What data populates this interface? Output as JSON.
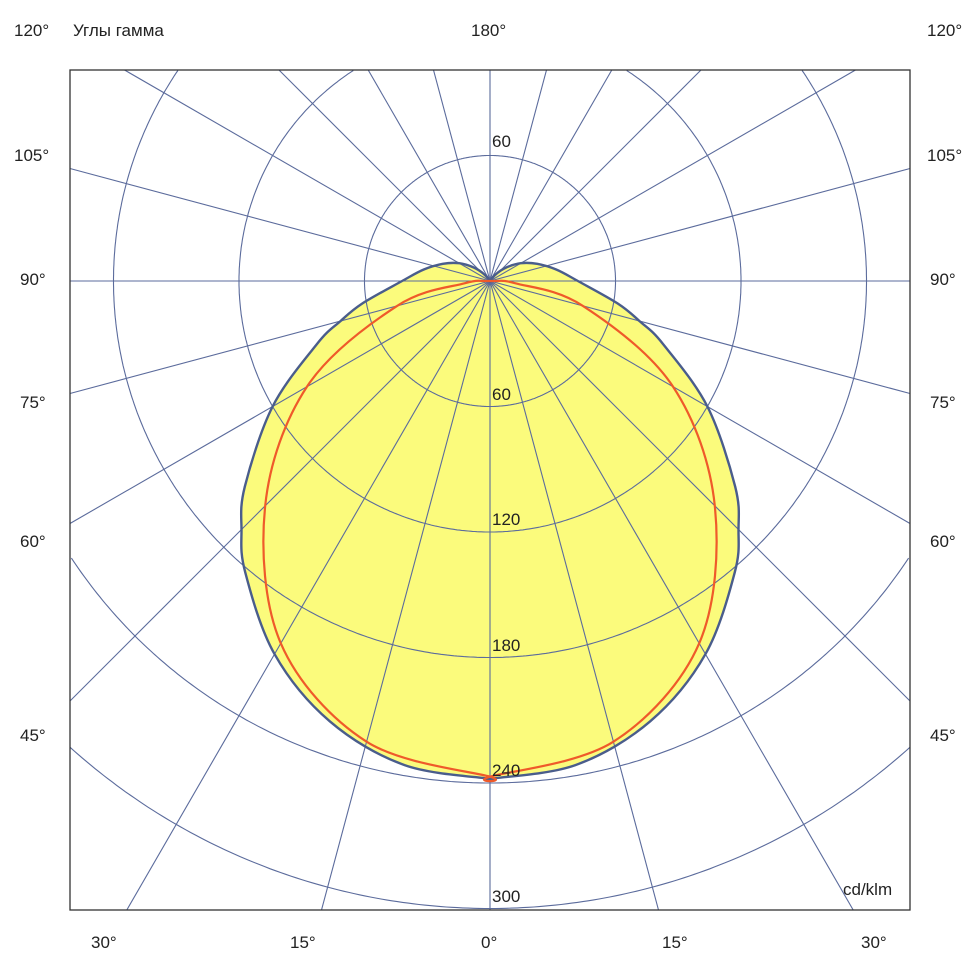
{
  "chart_data": {
    "type": "polar",
    "title": "Углы гамма",
    "unit_label": "cd/klm",
    "radial_ticks": [
      60,
      120,
      180,
      240,
      300
    ],
    "top_ring_label": "60",
    "radial_max_visible": 300,
    "angle_step_deg": 15,
    "angle_labels": {
      "top_center": "180°",
      "top_left": "120°",
      "top_right": "120°",
      "left": [
        "105°",
        "90°",
        "75°",
        "60°",
        "45°"
      ],
      "right": [
        "105°",
        "90°",
        "75°",
        "60°",
        "45°"
      ],
      "bottom": [
        "30°",
        "15°",
        "0°",
        "15°",
        "30°"
      ]
    },
    "grid": true,
    "colors": {
      "fill": "#fbfb7c",
      "outline": "#4a5d8c",
      "red_curve": "#ef5a2a",
      "grid": "#5b6b9c"
    },
    "series": [
      {
        "style": "filled-outline",
        "gamma": [
          0,
          10,
          20,
          30,
          40,
          45,
          50,
          60,
          70,
          75,
          80,
          90,
          100,
          110,
          120,
          130,
          140,
          150,
          180
        ],
        "values": [
          238,
          235,
          224,
          206,
          182,
          168,
          153,
          120,
          88,
          74,
          62,
          42,
          32,
          24,
          17,
          10,
          4,
          0,
          0
        ]
      },
      {
        "style": "red-line",
        "gamma": [
          0,
          15,
          30,
          45,
          60,
          75,
          85,
          90
        ],
        "values": [
          237,
          228,
          200,
          152,
          101,
          46,
          12,
          3
        ]
      }
    ]
  }
}
